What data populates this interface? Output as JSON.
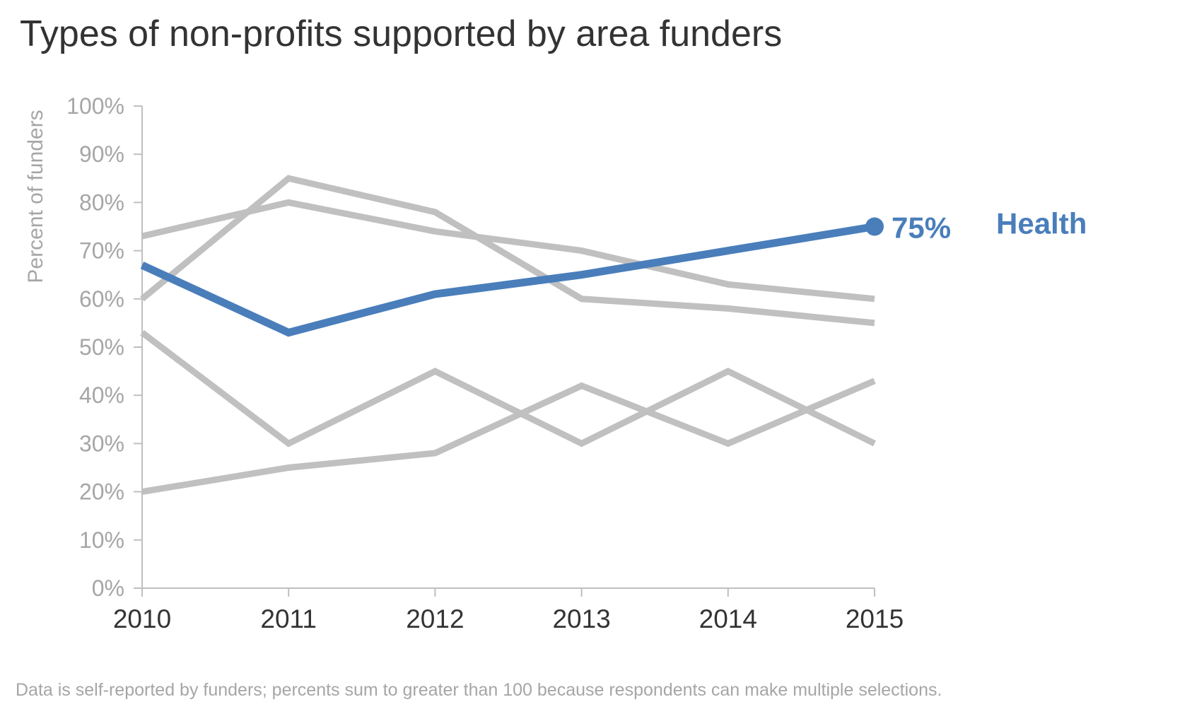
{
  "title": "Types of non-profits supported by area funders",
  "footnote": "Data is self-reported by funders; percents sum to greater than 100 because respondents can make multiple selections.",
  "colors": {
    "highlight": "#4a7ebb",
    "muted": "#c0c0c0",
    "axis": "#bfbfbf",
    "tick_text": "#a6a6a6",
    "x_tick_text": "#333333"
  },
  "chart_data": {
    "type": "line",
    "title": "Types of non-profits supported by area funders",
    "xlabel": "",
    "ylabel": "Percent of funders",
    "x": [
      "2010",
      "2011",
      "2012",
      "2013",
      "2014",
      "2015"
    ],
    "yticks": [
      "0%",
      "10%",
      "20%",
      "30%",
      "40%",
      "50%",
      "60%",
      "70%",
      "80%",
      "90%",
      "100%"
    ],
    "ylim": [
      0,
      100
    ],
    "grid": false,
    "legend": "none",
    "series": [
      {
        "values": [
          73,
          80,
          74,
          70,
          63,
          60
        ],
        "color": "#c0c0c0"
      },
      {
        "values": [
          60,
          85,
          78,
          60,
          58,
          55
        ],
        "color": "#c0c0c0"
      },
      {
        "values": [
          53,
          30,
          45,
          30,
          45,
          30
        ],
        "color": "#c0c0c0"
      },
      {
        "values": [
          20,
          25,
          28,
          42,
          30,
          43
        ],
        "color": "#c0c0c0"
      },
      {
        "name": "Health",
        "values": [
          67,
          53,
          61,
          65,
          70,
          75
        ],
        "color": "#4a7ebb",
        "highlight": true
      }
    ],
    "annotations": [
      {
        "series": "Health",
        "text": "75%"
      },
      {
        "series": "Health",
        "text": "Health"
      }
    ]
  }
}
